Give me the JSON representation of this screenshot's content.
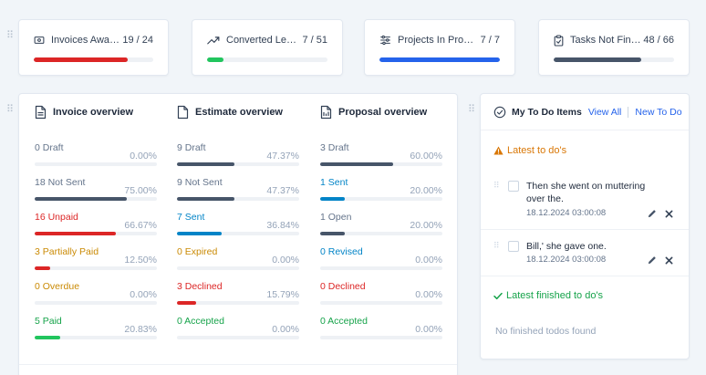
{
  "colors": {
    "red": "#dc2626",
    "green": "#22c55e",
    "blue": "#2563eb",
    "dark": "#475569",
    "gray": "#64748b",
    "orange": "#ca8a04",
    "link_blue": "#0284c7",
    "warning": "#d97706",
    "success": "#16a34a"
  },
  "stats": [
    {
      "icon": "invoice-icon",
      "label": "Invoices Awaiting Payment",
      "count": "19 / 24",
      "progress": 0.79,
      "color": "#dc2626"
    },
    {
      "icon": "trending-up-icon",
      "label": "Converted Leads",
      "count": "7 / 51",
      "progress": 0.14,
      "color": "#22c55e"
    },
    {
      "icon": "sliders-icon",
      "label": "Projects In Progress",
      "count": "7 / 7",
      "progress": 1.0,
      "color": "#2563eb"
    },
    {
      "icon": "clipboard-check-icon",
      "label": "Tasks Not Finished",
      "count": "48 / 66",
      "progress": 0.73,
      "color": "#475569"
    }
  ],
  "invoice": {
    "title": "Invoice overview",
    "rows": [
      {
        "label": "0 Draft",
        "pct": "0.00%",
        "progress": 0.0,
        "color": "#64748b",
        "bar": "#475569"
      },
      {
        "label": "18 Not Sent",
        "pct": "75.00%",
        "progress": 0.75,
        "color": "#64748b",
        "bar": "#475569"
      },
      {
        "label": "16 Unpaid",
        "pct": "66.67%",
        "progress": 0.6667,
        "color": "#dc2626",
        "bar": "#dc2626"
      },
      {
        "label": "3 Partially Paid",
        "pct": "12.50%",
        "progress": 0.125,
        "color": "#ca8a04",
        "bar": "#dc2626"
      },
      {
        "label": "0 Overdue",
        "pct": "0.00%",
        "progress": 0.0,
        "color": "#ca8a04",
        "bar": "#ca8a04"
      },
      {
        "label": "5 Paid",
        "pct": "20.83%",
        "progress": 0.2083,
        "color": "#16a34a",
        "bar": "#22c55e"
      }
    ]
  },
  "estimate": {
    "title": "Estimate overview",
    "rows": [
      {
        "label": "9 Draft",
        "pct": "47.37%",
        "progress": 0.4737,
        "color": "#64748b",
        "bar": "#475569"
      },
      {
        "label": "9 Not Sent",
        "pct": "47.37%",
        "progress": 0.4737,
        "color": "#64748b",
        "bar": "#475569"
      },
      {
        "label": "7 Sent",
        "pct": "36.84%",
        "progress": 0.3684,
        "color": "#0284c7",
        "bar": "#0284c7"
      },
      {
        "label": "0 Expired",
        "pct": "0.00%",
        "progress": 0.0,
        "color": "#ca8a04",
        "bar": "#ca8a04"
      },
      {
        "label": "3 Declined",
        "pct": "15.79%",
        "progress": 0.1579,
        "color": "#dc2626",
        "bar": "#dc2626"
      },
      {
        "label": "0 Accepted",
        "pct": "0.00%",
        "progress": 0.0,
        "color": "#16a34a",
        "bar": "#22c55e"
      }
    ]
  },
  "proposal": {
    "title": "Proposal overview",
    "rows": [
      {
        "label": "3 Draft",
        "pct": "60.00%",
        "progress": 0.6,
        "color": "#64748b",
        "bar": "#475569"
      },
      {
        "label": "1 Sent",
        "pct": "20.00%",
        "progress": 0.2,
        "color": "#0284c7",
        "bar": "#0284c7"
      },
      {
        "label": "1 Open",
        "pct": "20.00%",
        "progress": 0.2,
        "color": "#64748b",
        "bar": "#475569"
      },
      {
        "label": "0 Revised",
        "pct": "0.00%",
        "progress": 0.0,
        "color": "#0284c7",
        "bar": "#0284c7"
      },
      {
        "label": "0 Declined",
        "pct": "0.00%",
        "progress": 0.0,
        "color": "#dc2626",
        "bar": "#dc2626"
      },
      {
        "label": "0 Accepted",
        "pct": "0.00%",
        "progress": 0.0,
        "color": "#16a34a",
        "bar": "#22c55e"
      }
    ]
  },
  "todo": {
    "title": "My To Do Items",
    "view_all": "View All",
    "new_todo": "New To Do",
    "latest_title": "Latest to do's",
    "items": [
      {
        "text": "Then she went on muttering over the.",
        "date": "18.12.2024 03:00:08"
      },
      {
        "text": "Bill,' she gave one.",
        "date": "18.12.2024 03:00:08"
      }
    ],
    "finished_title": "Latest finished to do's",
    "finished_empty": "No finished todos found"
  }
}
